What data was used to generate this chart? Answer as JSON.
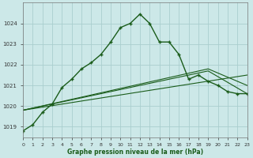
{
  "title": "Graphe pression niveau de la mer (hPa)",
  "background_color": "#cce8e8",
  "grid_color": "#aacece",
  "line_color": "#1a5c1a",
  "xlim": [
    0,
    23
  ],
  "ylim": [
    1018.5,
    1025.0
  ],
  "yticks": [
    1019,
    1020,
    1021,
    1022,
    1023,
    1024
  ],
  "xticks": [
    0,
    1,
    2,
    3,
    4,
    5,
    6,
    7,
    8,
    9,
    10,
    11,
    12,
    13,
    14,
    15,
    16,
    17,
    18,
    19,
    20,
    21,
    22,
    23
  ],
  "series_main": [
    [
      0,
      1018.8
    ],
    [
      1,
      1019.1
    ],
    [
      2,
      1019.7
    ],
    [
      3,
      1020.1
    ],
    [
      4,
      1020.9
    ],
    [
      5,
      1021.3
    ],
    [
      6,
      1021.8
    ],
    [
      7,
      1022.1
    ],
    [
      8,
      1022.5
    ],
    [
      9,
      1023.1
    ],
    [
      10,
      1023.8
    ],
    [
      11,
      1024.0
    ],
    [
      12,
      1024.45
    ],
    [
      13,
      1024.0
    ],
    [
      14,
      1023.1
    ],
    [
      15,
      1023.1
    ],
    [
      16,
      1022.5
    ],
    [
      17,
      1021.3
    ],
    [
      18,
      1021.5
    ],
    [
      19,
      1021.2
    ],
    [
      20,
      1021.0
    ],
    [
      21,
      1020.7
    ],
    [
      22,
      1020.6
    ],
    [
      23,
      1020.6
    ]
  ],
  "series_flat1": [
    [
      0,
      1019.8
    ],
    [
      23,
      1021.5
    ]
  ],
  "series_flat2": [
    [
      0,
      1019.8
    ],
    [
      19,
      1021.7
    ],
    [
      23,
      1020.6
    ]
  ],
  "series_flat3": [
    [
      0,
      1019.8
    ],
    [
      19,
      1021.8
    ],
    [
      23,
      1021.0
    ]
  ],
  "figsize": [
    3.2,
    2.0
  ],
  "dpi": 100
}
